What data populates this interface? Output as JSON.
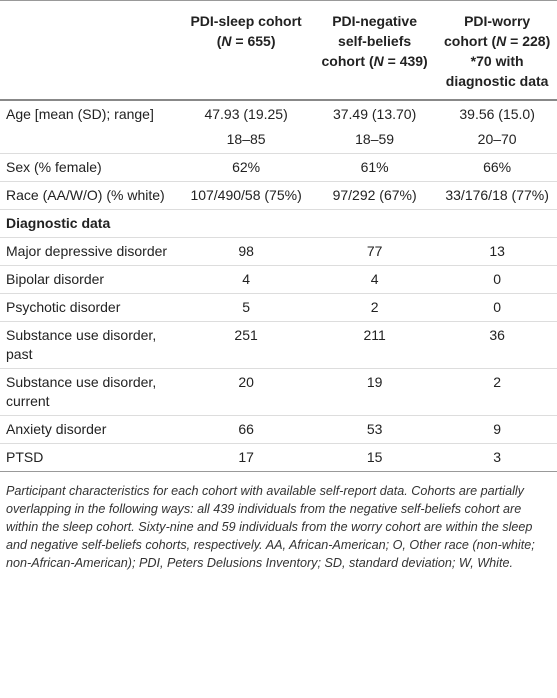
{
  "table": {
    "header": [
      [],
      [
        "PDI-sleep cohort (",
        "N",
        " = 655)"
      ],
      [
        "PDI-negative self-beliefs cohort (",
        "N",
        " = 439)"
      ],
      [
        "PDI-worry cohort (",
        "N",
        " = 228) *70 with diagnostic data"
      ]
    ],
    "rows": [
      [
        "Age [mean (SD); range]",
        [
          "47.93 (19.25)",
          "18–85"
        ],
        [
          "37.49 (13.70)",
          "18–59"
        ],
        [
          "39.56 (15.0)",
          "20–70"
        ]
      ],
      [
        "Sex (% female)",
        "62%",
        "61%",
        "66%"
      ],
      [
        "Race (AA/W/O) (% white)",
        "107/490/58 (75%)",
        "97/292 (67%)",
        "33/176/18 (77%)"
      ]
    ],
    "section": "Diagnostic data",
    "diagnostic_rows": [
      [
        "Major depressive disorder",
        "98",
        "77",
        "13"
      ],
      [
        "Bipolar disorder",
        "4",
        "4",
        "0"
      ],
      [
        "Psychotic disorder",
        "5",
        "2",
        "0"
      ],
      [
        "Substance use disorder, past",
        "251",
        "211",
        "36"
      ],
      [
        "Substance use disorder, current",
        "20",
        "19",
        "2"
      ],
      [
        "Anxiety disorder",
        "66",
        "53",
        "9"
      ],
      [
        "PTSD",
        "17",
        "15",
        "3"
      ]
    ]
  },
  "footnote": "Participant characteristics for each cohort with available self-report data. Cohorts are partially overlapping in the following ways: all 439 individuals from the negative self-beliefs cohort are within the sleep cohort. Sixty-nine and 59 individuals from the worry cohort are within the sleep and negative self-beliefs cohorts, respectively. AA, African-American; O, Other race (non-white; non-African-American); PDI, Peters Delusions Inventory; SD, standard deviation; W, White."
}
